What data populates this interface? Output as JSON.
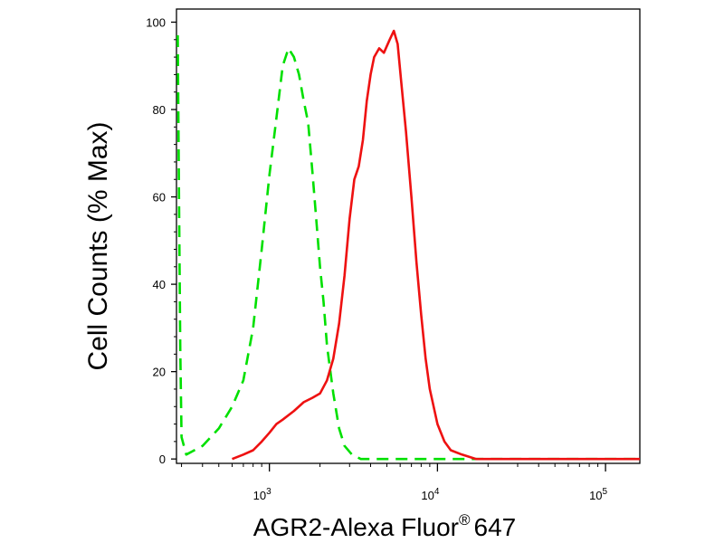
{
  "chart_data": {
    "type": "line",
    "title": "",
    "xlabel": "AGR2-Alexa Fluor",
    "xlabel_superscript": "®",
    "xlabel_suffix": "647",
    "ylabel": "Cell Counts (% Max)",
    "x_scale": "log",
    "xlim": [
      280,
      160000
    ],
    "ylim": [
      -1,
      103
    ],
    "x_ticks": [
      {
        "value": 1000,
        "base": "10",
        "exp": "3"
      },
      {
        "value": 10000,
        "base": "10",
        "exp": "4"
      },
      {
        "value": 100000,
        "base": "10",
        "exp": "5"
      }
    ],
    "y_ticks": [
      0,
      20,
      40,
      60,
      80,
      100
    ],
    "series": [
      {
        "color": "#00e000",
        "style": "dashed",
        "points": [
          [
            285,
            97
          ],
          [
            290,
            60
          ],
          [
            295,
            25
          ],
          [
            300,
            5
          ],
          [
            320,
            1
          ],
          [
            400,
            3
          ],
          [
            500,
            7
          ],
          [
            600,
            12
          ],
          [
            700,
            18
          ],
          [
            800,
            30
          ],
          [
            900,
            48
          ],
          [
            1000,
            65
          ],
          [
            1100,
            78
          ],
          [
            1200,
            90
          ],
          [
            1300,
            94
          ],
          [
            1400,
            92
          ],
          [
            1500,
            88
          ],
          [
            1600,
            82
          ],
          [
            1700,
            77
          ],
          [
            1800,
            66
          ],
          [
            1900,
            55
          ],
          [
            2000,
            44
          ],
          [
            2100,
            36
          ],
          [
            2200,
            26
          ],
          [
            2400,
            15
          ],
          [
            2600,
            7
          ],
          [
            2800,
            3
          ],
          [
            3100,
            1
          ],
          [
            3500,
            0
          ],
          [
            10000,
            0
          ],
          [
            100000,
            0
          ],
          [
            160000,
            0
          ]
        ]
      },
      {
        "color": "#ee1111",
        "style": "solid",
        "points": [
          [
            600,
            0
          ],
          [
            700,
            1
          ],
          [
            800,
            2
          ],
          [
            900,
            4
          ],
          [
            1000,
            6
          ],
          [
            1100,
            8
          ],
          [
            1200,
            9
          ],
          [
            1400,
            11
          ],
          [
            1600,
            13
          ],
          [
            1800,
            14
          ],
          [
            2000,
            15
          ],
          [
            2200,
            18
          ],
          [
            2400,
            23
          ],
          [
            2600,
            31
          ],
          [
            2800,
            42
          ],
          [
            3000,
            55
          ],
          [
            3200,
            64
          ],
          [
            3400,
            67
          ],
          [
            3600,
            73
          ],
          [
            3800,
            82
          ],
          [
            4000,
            88
          ],
          [
            4200,
            92
          ],
          [
            4500,
            94
          ],
          [
            4800,
            93
          ],
          [
            5200,
            96
          ],
          [
            5500,
            98
          ],
          [
            5800,
            95
          ],
          [
            6100,
            86
          ],
          [
            6500,
            75
          ],
          [
            7000,
            60
          ],
          [
            7500,
            45
          ],
          [
            8000,
            33
          ],
          [
            8500,
            23
          ],
          [
            9000,
            16
          ],
          [
            10000,
            8
          ],
          [
            11000,
            4
          ],
          [
            12000,
            2
          ],
          [
            14000,
            1
          ],
          [
            17000,
            0
          ],
          [
            30000,
            0
          ],
          [
            160000,
            0
          ]
        ]
      }
    ]
  }
}
